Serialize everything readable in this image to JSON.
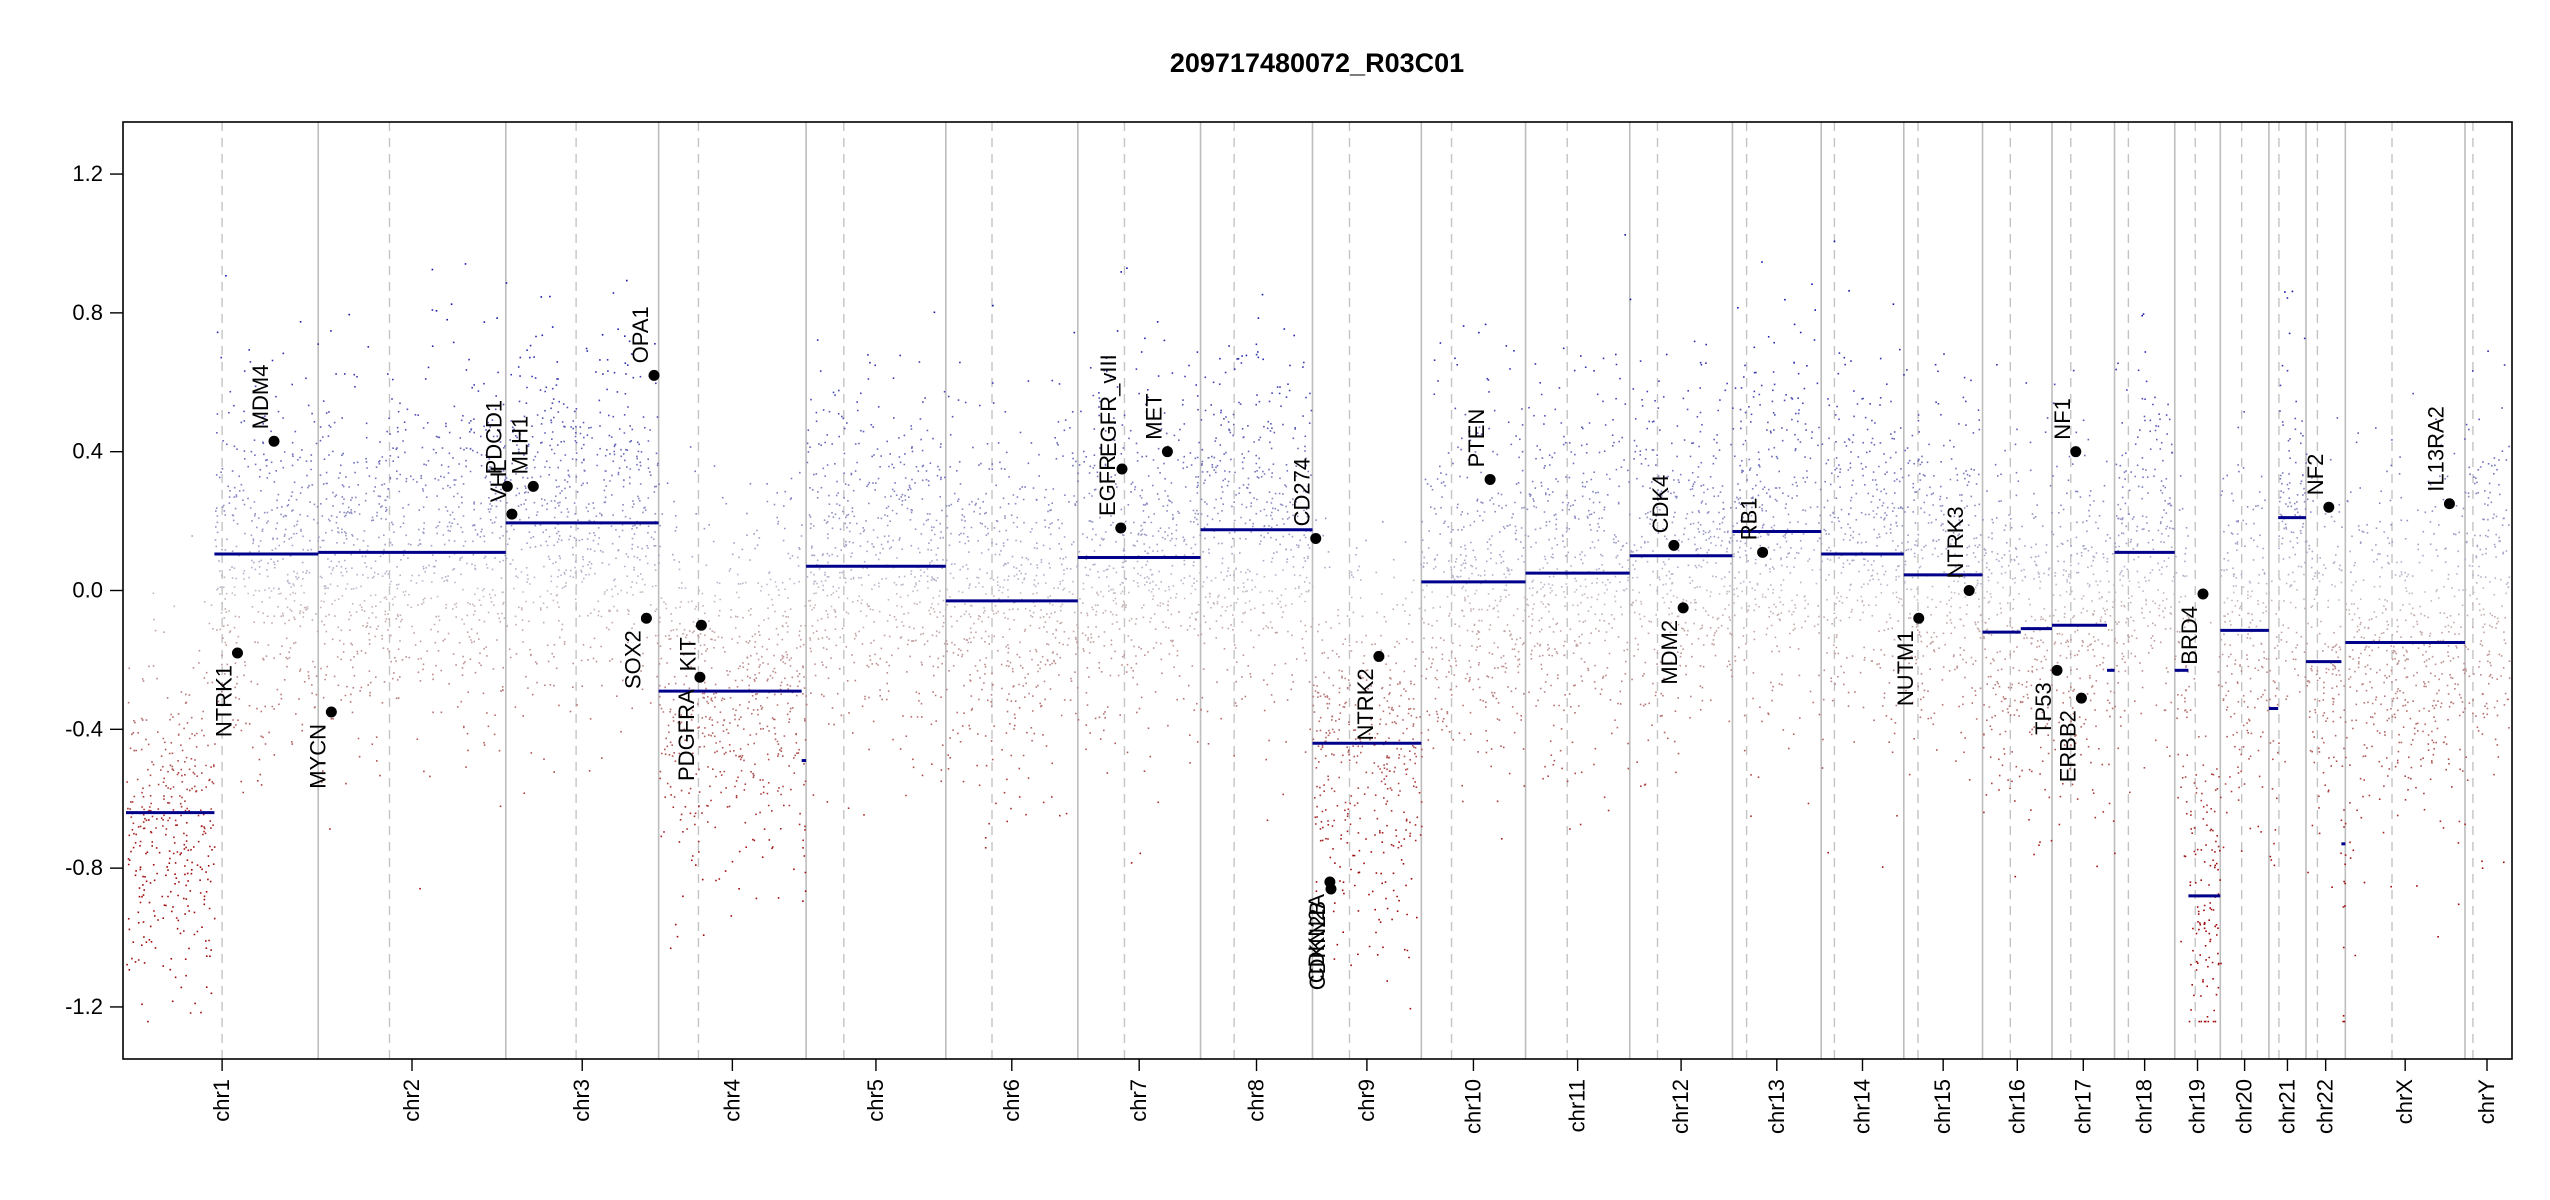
{
  "chart_data": {
    "type": "scatter",
    "title": "209717480072_R03C01",
    "xlabel": "",
    "ylabel": "",
    "ylim": [
      -1.35,
      1.35
    ],
    "yticks": [
      -1.2,
      -0.8,
      -0.4,
      0.0,
      0.4,
      0.8,
      1.2
    ],
    "ytick_labels": [
      "-1.2",
      "-0.8",
      "-0.4",
      "0.0",
      "0.4",
      "0.8",
      "1.2"
    ],
    "chromosomes": [
      {
        "name": "chr1",
        "length": 249,
        "centromere": 0.5,
        "segments": [
          {
            "from": 0.0,
            "to": 0.46,
            "value": -0.64
          },
          {
            "from": 0.46,
            "to": 1.0,
            "value": 0.105
          }
        ]
      },
      {
        "name": "chr2",
        "length": 243,
        "centromere": 0.38,
        "segments": [
          {
            "from": 0.0,
            "to": 1.0,
            "value": 0.11
          }
        ]
      },
      {
        "name": "chr3",
        "length": 198,
        "centromere": 0.46,
        "segments": [
          {
            "from": 0.0,
            "to": 1.0,
            "value": 0.195
          }
        ]
      },
      {
        "name": "chr4",
        "length": 191,
        "centromere": 0.27,
        "segments": [
          {
            "from": 0.0,
            "to": 0.97,
            "value": -0.29
          },
          {
            "from": 0.97,
            "to": 1.0,
            "value": -0.49
          }
        ]
      },
      {
        "name": "chr5",
        "length": 181,
        "centromere": 0.27,
        "segments": [
          {
            "from": 0.0,
            "to": 1.0,
            "value": 0.07
          }
        ]
      },
      {
        "name": "chr6",
        "length": 171,
        "centromere": 0.35,
        "segments": [
          {
            "from": 0.0,
            "to": 1.0,
            "value": -0.03
          }
        ]
      },
      {
        "name": "chr7",
        "length": 159,
        "centromere": 0.38,
        "segments": [
          {
            "from": 0.0,
            "to": 1.0,
            "value": 0.095
          }
        ]
      },
      {
        "name": "chr8",
        "length": 145,
        "centromere": 0.3,
        "segments": [
          {
            "from": 0.0,
            "to": 1.0,
            "value": 0.175
          }
        ]
      },
      {
        "name": "chr9",
        "length": 141,
        "centromere": 0.34,
        "segments": [
          {
            "from": 0.0,
            "to": 1.0,
            "value": -0.44
          }
        ]
      },
      {
        "name": "chr10",
        "length": 135,
        "centromere": 0.29,
        "segments": [
          {
            "from": 0.0,
            "to": 1.0,
            "value": 0.025
          }
        ]
      },
      {
        "name": "chr11",
        "length": 135,
        "centromere": 0.4,
        "segments": [
          {
            "from": 0.0,
            "to": 1.0,
            "value": 0.05
          }
        ]
      },
      {
        "name": "chr12",
        "length": 133,
        "centromere": 0.27,
        "segments": [
          {
            "from": 0.0,
            "to": 1.0,
            "value": 0.1
          }
        ]
      },
      {
        "name": "chr13",
        "length": 115,
        "centromere": 0.16,
        "segments": [
          {
            "from": 0.0,
            "to": 1.0,
            "value": 0.17
          }
        ]
      },
      {
        "name": "chr14",
        "length": 107,
        "centromere": 0.16,
        "segments": [
          {
            "from": 0.0,
            "to": 1.0,
            "value": 0.105
          }
        ]
      },
      {
        "name": "chr15",
        "length": 102,
        "centromere": 0.18,
        "segments": [
          {
            "from": 0.0,
            "to": 1.0,
            "value": 0.045
          }
        ]
      },
      {
        "name": "chr16",
        "length": 90,
        "centromere": 0.4,
        "segments": [
          {
            "from": 0.0,
            "to": 0.55,
            "value": -0.12
          },
          {
            "from": 0.55,
            "to": 1.0,
            "value": -0.11
          }
        ]
      },
      {
        "name": "chr17",
        "length": 81,
        "centromere": 0.3,
        "segments": [
          {
            "from": 0.0,
            "to": 0.88,
            "value": -0.1
          },
          {
            "from": 0.88,
            "to": 1.0,
            "value": -0.23
          }
        ]
      },
      {
        "name": "chr18",
        "length": 78,
        "centromere": 0.23,
        "segments": [
          {
            "from": 0.0,
            "to": 1.0,
            "value": 0.11
          }
        ]
      },
      {
        "name": "chr19",
        "length": 59,
        "centromere": 0.45,
        "segments": [
          {
            "from": 0.0,
            "to": 0.3,
            "value": -0.23
          },
          {
            "from": 0.3,
            "to": 1.0,
            "value": -0.88
          }
        ]
      },
      {
        "name": "chr20",
        "length": 63,
        "centromere": 0.44,
        "segments": [
          {
            "from": 0.0,
            "to": 1.0,
            "value": -0.115
          }
        ]
      },
      {
        "name": "chr21",
        "length": 48,
        "centromere": 0.27,
        "segments": [
          {
            "from": 0.0,
            "to": 0.25,
            "value": -0.34
          },
          {
            "from": 0.25,
            "to": 1.0,
            "value": 0.21
          }
        ]
      },
      {
        "name": "chr22",
        "length": 51,
        "centromere": 0.29,
        "segments": [
          {
            "from": 0.0,
            "to": 0.9,
            "value": -0.205
          },
          {
            "from": 0.9,
            "to": 1.0,
            "value": -0.73
          }
        ]
      },
      {
        "name": "chrX",
        "length": 155,
        "centromere": 0.39,
        "segments": [
          {
            "from": 0.0,
            "to": 1.0,
            "value": -0.15
          }
        ]
      },
      {
        "name": "chrY",
        "length": 57,
        "centromere": 0.18,
        "segments": []
      }
    ],
    "genes": [
      {
        "name": "NTRK1",
        "chrom": "chr1",
        "pos": 0.58,
        "value": -0.18
      },
      {
        "name": "MDM4",
        "chrom": "chr1",
        "pos": 0.77,
        "value": 0.43
      },
      {
        "name": "MYCN",
        "chrom": "chr2",
        "pos": 0.07,
        "value": -0.35
      },
      {
        "name": "VHL",
        "chrom": "chr3",
        "pos": 0.04,
        "value": 0.22
      },
      {
        "name": "PDCD1",
        "chrom": "chr3",
        "pos": 0.01,
        "value": 0.3
      },
      {
        "name": "MLH1",
        "chrom": "chr3",
        "pos": 0.18,
        "value": 0.3
      },
      {
        "name": "SOX2",
        "chrom": "chr3",
        "pos": 0.92,
        "value": -0.08
      },
      {
        "name": "OPA1",
        "chrom": "chr3",
        "pos": 0.97,
        "value": 0.62
      },
      {
        "name": "KIT",
        "chrom": "chr4",
        "pos": 0.29,
        "value": -0.1
      },
      {
        "name": "PDGFRA",
        "chrom": "chr4",
        "pos": 0.28,
        "value": -0.25
      },
      {
        "name": "EGFR",
        "chrom": "chr7",
        "pos": 0.35,
        "value": 0.18
      },
      {
        "name": "EGFR_vIII",
        "chrom": "chr7",
        "pos": 0.36,
        "value": 0.35
      },
      {
        "name": "MET",
        "chrom": "chr7",
        "pos": 0.73,
        "value": 0.4
      },
      {
        "name": "CD274",
        "chrom": "chr9",
        "pos": 0.03,
        "value": 0.15
      },
      {
        "name": "CDKN2A",
        "chrom": "chr9",
        "pos": 0.16,
        "value": -0.84
      },
      {
        "name": "CDKN2B",
        "chrom": "chr9",
        "pos": 0.17,
        "value": -0.86
      },
      {
        "name": "NTRK2",
        "chrom": "chr9",
        "pos": 0.61,
        "value": -0.19
      },
      {
        "name": "PTEN",
        "chrom": "chr10",
        "pos": 0.66,
        "value": 0.32
      },
      {
        "name": "CDK4",
        "chrom": "chr12",
        "pos": 0.43,
        "value": 0.13
      },
      {
        "name": "MDM2",
        "chrom": "chr12",
        "pos": 0.52,
        "value": -0.05
      },
      {
        "name": "RB1",
        "chrom": "chr13",
        "pos": 0.34,
        "value": 0.11
      },
      {
        "name": "NUTM1",
        "chrom": "chr15",
        "pos": 0.19,
        "value": -0.08
      },
      {
        "name": "NTRK3",
        "chrom": "chr15",
        "pos": 0.83,
        "value": 0.0
      },
      {
        "name": "TP53",
        "chrom": "chr17",
        "pos": 0.08,
        "value": -0.23
      },
      {
        "name": "NF1",
        "chrom": "chr17",
        "pos": 0.38,
        "value": 0.4
      },
      {
        "name": "ERBB2",
        "chrom": "chr17",
        "pos": 0.47,
        "value": -0.31
      },
      {
        "name": "BRD4",
        "chrom": "chr19",
        "pos": 0.62,
        "value": -0.01
      },
      {
        "name": "NF2",
        "chrom": "chr22",
        "pos": 0.58,
        "value": 0.24
      },
      {
        "name": "IL13RA2",
        "chrom": "chrX",
        "pos": 0.87,
        "value": 0.25
      }
    ]
  }
}
